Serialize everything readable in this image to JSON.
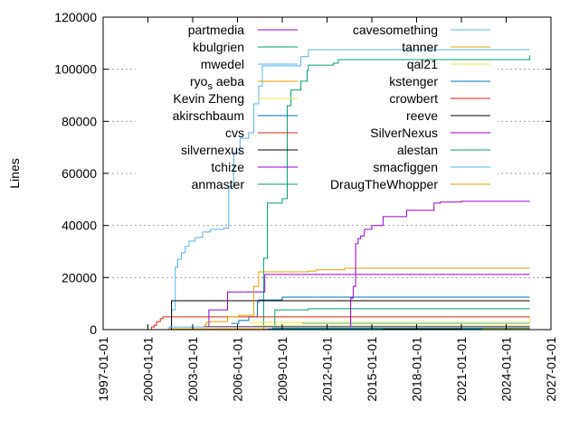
{
  "chart_data": {
    "type": "line",
    "title": "",
    "xlabel": "",
    "ylabel": "Lines",
    "xlim": [
      "1997-01-01",
      "2027-01-01"
    ],
    "ylim": [
      0,
      120000
    ],
    "x_ticks": [
      "1997-01-01",
      "2000-01-01",
      "2003-01-01",
      "2006-01-01",
      "2009-01-01",
      "2012-01-01",
      "2015-01-01",
      "2018-01-01",
      "2021-01-01",
      "2024-01-01",
      "2027-01-01"
    ],
    "y_ticks": [
      "0",
      "20000",
      "40000",
      "60000",
      "80000",
      "100000",
      "120000"
    ],
    "grid": true,
    "legend_position": "top, two columns",
    "step_style": "steps",
    "series": [
      {
        "name": "partmedia",
        "color": "#9400d3",
        "points": [
          [
            "2014-01",
            100
          ],
          [
            "2025-08",
            100
          ]
        ]
      },
      {
        "name": "kbulgrien",
        "color": "#009e73",
        "points": [
          [
            "2007-09",
            0
          ],
          [
            "2007-10",
            27400
          ],
          [
            "2008-01",
            48600
          ],
          [
            "2009-01",
            50300
          ],
          [
            "2009-05",
            86000
          ],
          [
            "2009-08",
            92000
          ],
          [
            "2010-04",
            95400
          ],
          [
            "2010-09",
            99500
          ],
          [
            "2010-10",
            101600
          ],
          [
            "2012-06",
            102300
          ],
          [
            "2012-10",
            103700
          ],
          [
            "2025-01",
            103700
          ],
          [
            "2025-08",
            105300
          ]
        ]
      },
      {
        "name": "mwedel",
        "color": "#56b4e9",
        "points": [
          [
            "2001-03",
            0
          ],
          [
            "2001-06",
            1000
          ],
          [
            "2001-08",
            7600
          ],
          [
            "2001-11",
            24000
          ],
          [
            "2002-01",
            27000
          ],
          [
            "2002-04",
            29500
          ],
          [
            "2002-07",
            32000
          ],
          [
            "2002-10",
            34000
          ],
          [
            "2003-03",
            35400
          ],
          [
            "2003-09",
            37500
          ],
          [
            "2004-03",
            38500
          ],
          [
            "2005-02",
            39000
          ],
          [
            "2005-06",
            55000
          ],
          [
            "2005-10",
            68000
          ],
          [
            "2006-03",
            73500
          ],
          [
            "2006-10",
            75600
          ],
          [
            "2007-02",
            86700
          ],
          [
            "2007-06",
            93600
          ],
          [
            "2007-09",
            101300
          ],
          [
            "2010-04",
            104800
          ],
          [
            "2010-10",
            107500
          ],
          [
            "2025-08",
            107500
          ]
        ]
      },
      {
        "name": "ryo_s aeba",
        "name_main": "ryo",
        "name_sub": "s",
        "name_tail": "aeba",
        "color": "#e69f00",
        "points": [
          [
            "2001-06",
            300
          ],
          [
            "2025-08",
            500
          ]
        ]
      },
      {
        "name": "Kevin Zheng",
        "color": "#f0e442",
        "points": [
          [
            "2006-10",
            2800
          ],
          [
            "2025-07",
            2800
          ],
          [
            "2025-08",
            5000
          ]
        ]
      },
      {
        "name": "akirschbaum",
        "color": "#0072b2",
        "points": [
          [
            "2005-08",
            2400
          ],
          [
            "2006-02",
            3500
          ],
          [
            "2006-10",
            4900
          ],
          [
            "2007-05",
            10400
          ],
          [
            "2007-06",
            11400
          ],
          [
            "2009-01",
            12500
          ],
          [
            "2025-08",
            12500
          ]
        ]
      },
      {
        "name": "cvs",
        "color": "#e51e10",
        "points": [
          [
            "1999-04",
            0
          ],
          [
            "2000-04",
            1000
          ],
          [
            "2000-06",
            1700
          ],
          [
            "2000-08",
            3100
          ],
          [
            "2000-11",
            4200
          ],
          [
            "2001-01",
            4900
          ],
          [
            "2025-08",
            4900
          ]
        ]
      },
      {
        "name": "silvernexus",
        "color": "#000000",
        "points": [
          [
            "2001-07",
            0
          ],
          [
            "2001-08",
            11100
          ],
          [
            "2025-08",
            11100
          ]
        ]
      },
      {
        "name": "tchize",
        "color": "#9400d3",
        "points": [
          [
            "2004-01",
            1000
          ],
          [
            "2004-02",
            7600
          ],
          [
            "2005-05",
            14500
          ],
          [
            "2007-11",
            21200
          ],
          [
            "2025-08",
            21200
          ]
        ]
      },
      {
        "name": "anmaster",
        "color": "#009e73",
        "points": [
          [
            "2008-06",
            0
          ],
          [
            "2008-07",
            7600
          ],
          [
            "2010-10",
            8000
          ],
          [
            "2025-08",
            8000
          ]
        ]
      },
      {
        "name": "cavesomething",
        "color": "#56b4e9",
        "points": [
          [
            "2010-05",
            2400
          ],
          [
            "2025-08",
            2400
          ]
        ]
      },
      {
        "name": "tanner",
        "color": "#e69f00",
        "points": [
          [
            "2003-10",
            1700
          ],
          [
            "2003-12",
            2800
          ],
          [
            "2004-03",
            3100
          ],
          [
            "2005-05",
            4900
          ],
          [
            "2006-02",
            5500
          ],
          [
            "2007-02",
            16600
          ],
          [
            "2007-06",
            22200
          ],
          [
            "2010-10",
            22500
          ],
          [
            "2011-04",
            23000
          ],
          [
            "2013-03",
            23600
          ],
          [
            "2025-08",
            23600
          ]
        ]
      },
      {
        "name": "qal21",
        "color": "#f0e442",
        "points": [
          [
            "2007-03",
            1500
          ],
          [
            "2025-08",
            1500
          ]
        ]
      },
      {
        "name": "kstenger",
        "color": "#0072b2",
        "points": [
          [
            "2008-01",
            300
          ],
          [
            "2025-08",
            300
          ]
        ]
      },
      {
        "name": "crowbert",
        "color": "#e51e10",
        "points": [
          [
            "2003-10",
            1200
          ],
          [
            "2025-08",
            1200
          ]
        ]
      },
      {
        "name": "reeve",
        "color": "#000000",
        "points": [
          [
            "2015-10",
            200
          ],
          [
            "2021-01",
            200
          ]
        ]
      },
      {
        "name": "SilverNexus",
        "color": "#9400d3",
        "points": [
          [
            "2013-06",
            0
          ],
          [
            "2013-08",
            12100
          ],
          [
            "2013-10",
            16600
          ],
          [
            "2013-12",
            33000
          ],
          [
            "2014-02",
            35000
          ],
          [
            "2014-04",
            36000
          ],
          [
            "2014-07",
            38500
          ],
          [
            "2015-01",
            40000
          ],
          [
            "2015-10",
            43400
          ],
          [
            "2017-05",
            45800
          ],
          [
            "2019-03",
            48600
          ],
          [
            "2019-08",
            49000
          ],
          [
            "2021-01",
            49300
          ],
          [
            "2025-08",
            49300
          ]
        ]
      },
      {
        "name": "alestan",
        "color": "#009e73",
        "points": [
          [
            "2008-05",
            600
          ],
          [
            "2025-08",
            600
          ]
        ]
      },
      {
        "name": "smacfiggen",
        "color": "#56b4e9",
        "points": [
          [
            "2001-06",
            1000
          ],
          [
            "2025-08",
            1000
          ]
        ]
      },
      {
        "name": "DraugTheWhopper",
        "color": "#e69f00",
        "points": [
          [
            "2022-06",
            200
          ],
          [
            "2025-08",
            200
          ]
        ]
      }
    ]
  }
}
